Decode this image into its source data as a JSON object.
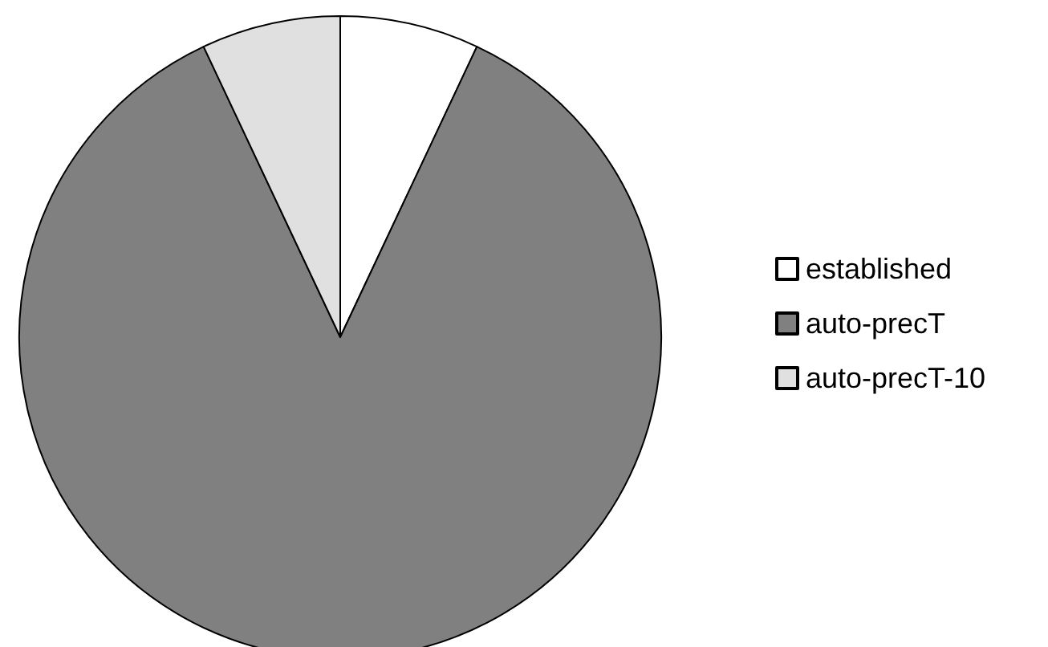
{
  "chart_data": {
    "type": "pie",
    "categories": [
      "established",
      "auto-precT",
      "auto-precT-10"
    ],
    "values": [
      7,
      86,
      7
    ],
    "colors": [
      "#ffffff",
      "#808080",
      "#e0e0e0"
    ],
    "legend": "right"
  }
}
